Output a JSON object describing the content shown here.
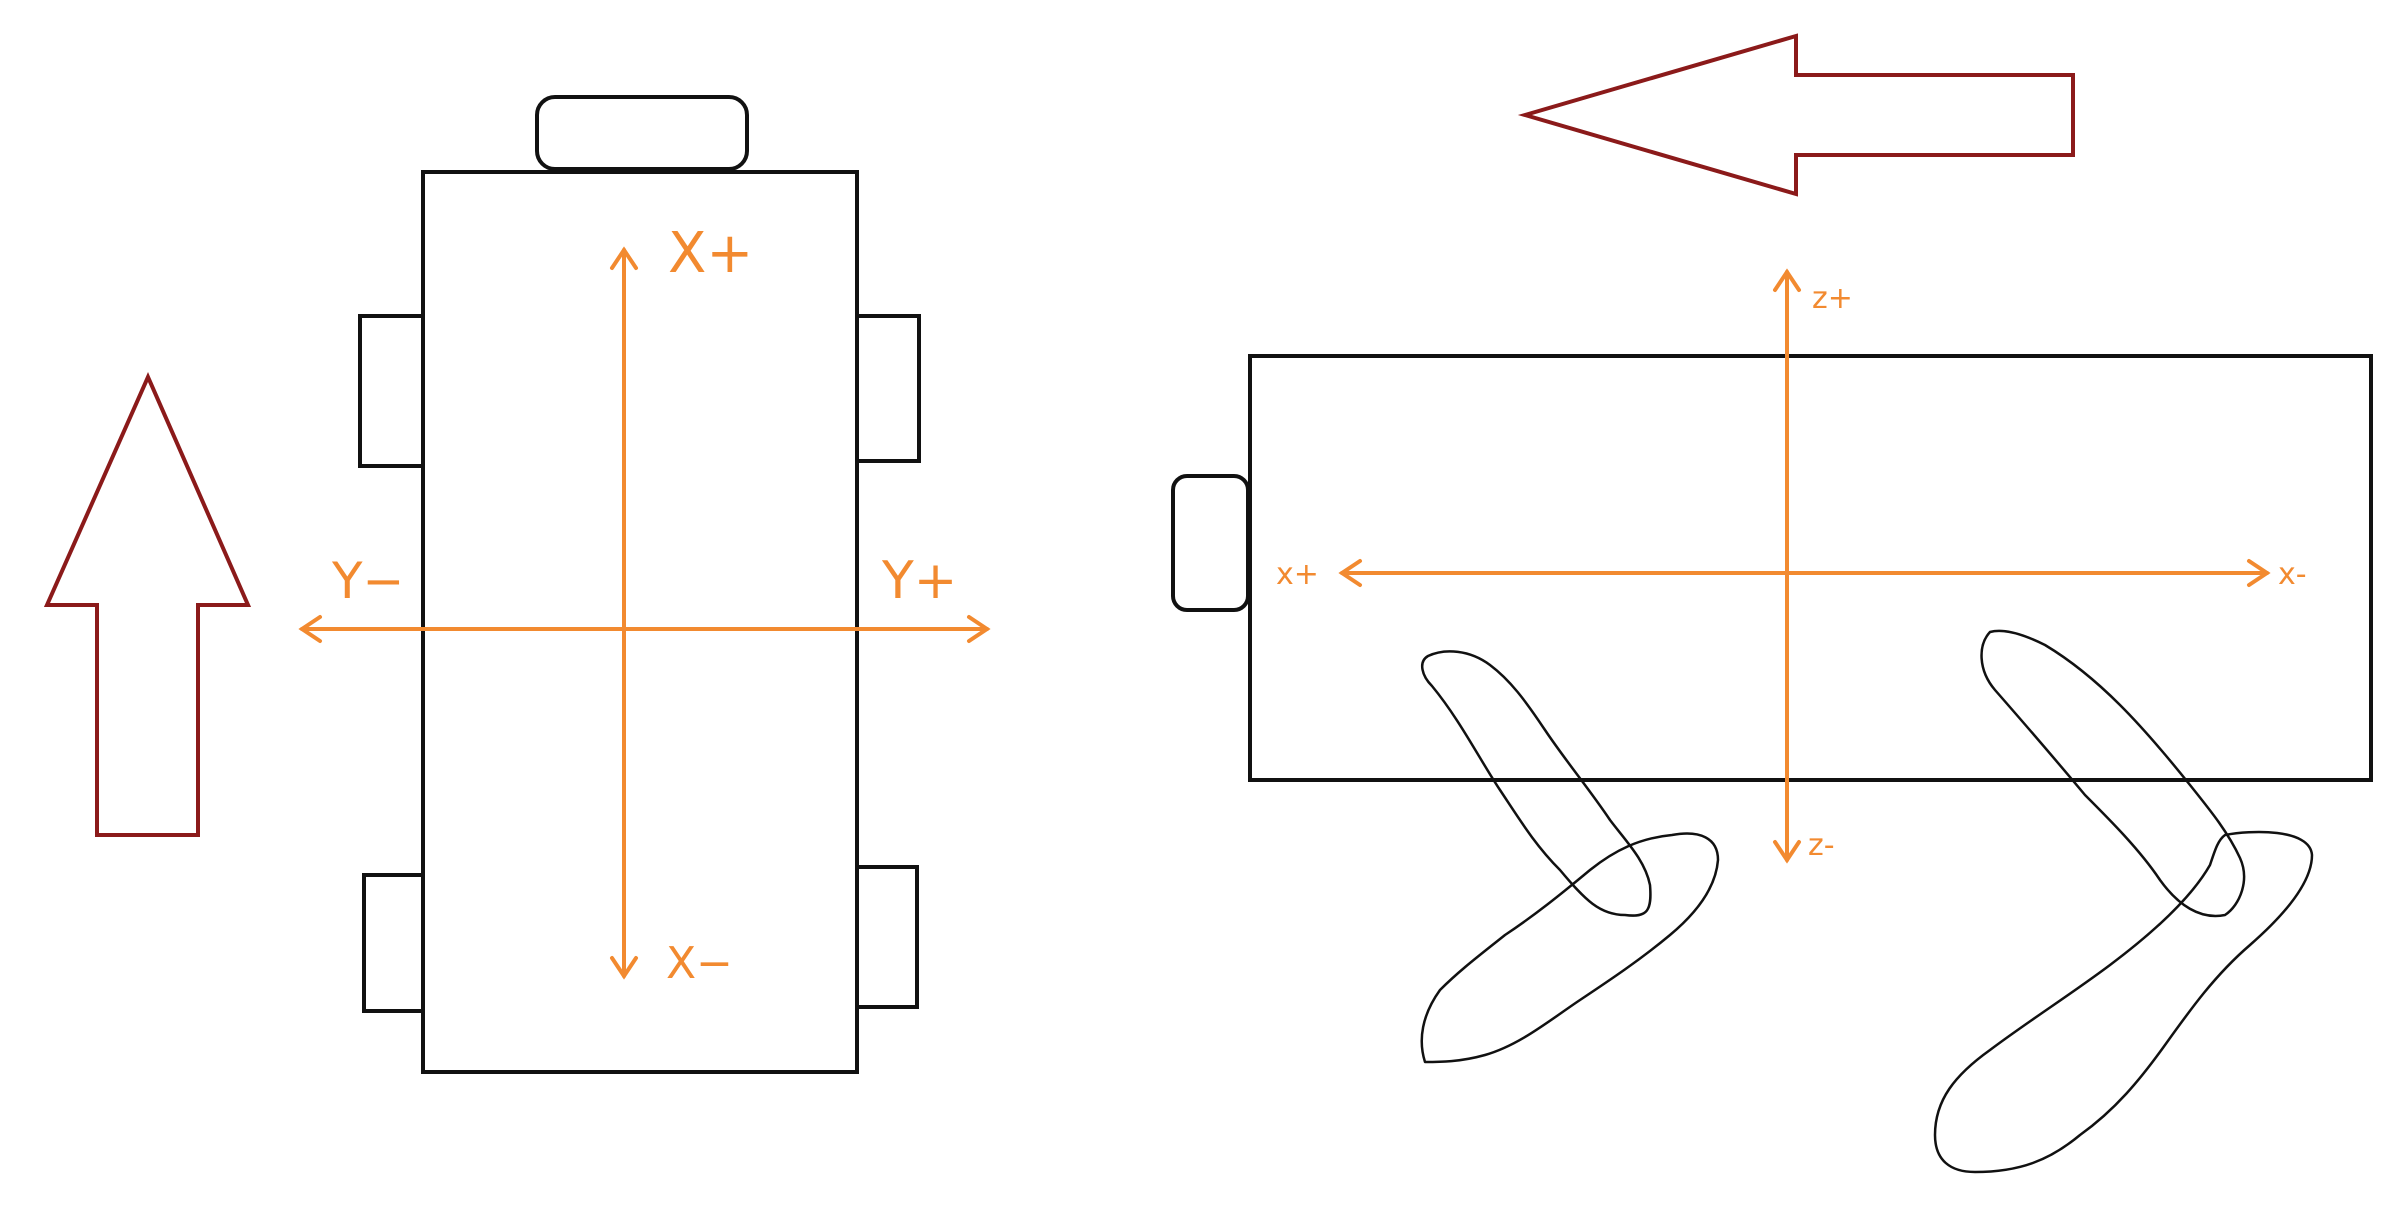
{
  "colors": {
    "axis": "#f28a30",
    "direction_arrow": "#8b1a1a",
    "outline": "#111111",
    "background": "#ffffff"
  },
  "top_view": {
    "labels": {
      "x_plus": "X+",
      "x_minus": "X−",
      "y_minus": "Y−",
      "y_plus": "Y+"
    }
  },
  "side_view": {
    "labels": {
      "z_plus": "z+",
      "z_minus": "z-",
      "x_plus": "x+",
      "x_minus": "x-"
    }
  }
}
